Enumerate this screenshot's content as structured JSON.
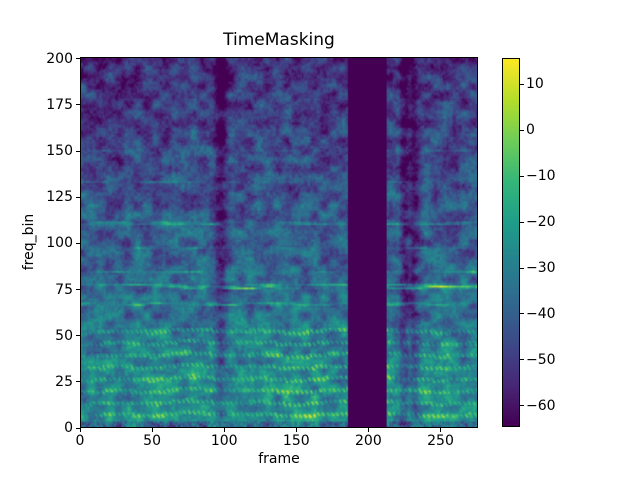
{
  "title": "TimeMasking",
  "axes": {
    "xlabel": "frame",
    "ylabel": "freq_bin",
    "x_ticks": [
      0,
      50,
      100,
      150,
      200,
      250
    ],
    "y_ticks": [
      0,
      25,
      50,
      75,
      100,
      125,
      150,
      175,
      200
    ]
  },
  "colorbar": {
    "tick_values": [
      10,
      0,
      -10,
      -20,
      -30,
      -40,
      -50,
      -60
    ],
    "tick_labels": [
      "10",
      "0",
      "−10",
      "−20",
      "−30",
      "−40",
      "−50",
      "−60"
    ]
  },
  "chart_data": {
    "type": "heatmap",
    "title": "TimeMasking",
    "xlabel": "frame",
    "ylabel": "freq_bin",
    "x_range": [
      0,
      276
    ],
    "y_range": [
      0,
      201
    ],
    "value_range": [
      -64.6,
      15.7
    ],
    "colormap": "viridis",
    "colormap_stops": [
      "#440154",
      "#482878",
      "#3e4989",
      "#31688e",
      "#26828e",
      "#1f9e89",
      "#35b779",
      "#6ece58",
      "#b5de2b",
      "#fde725"
    ],
    "masked_time_region": {
      "start_frame": 186,
      "end_frame": 213,
      "color": "#440154"
    },
    "colorbar_ticks": [
      10,
      0,
      -10,
      -20,
      -30,
      -40,
      -50,
      -60
    ],
    "grid": false,
    "description": "Log-power speech spectrogram (~276 frames x 201 freq bins) after TimeMasking augmentation: a uniform minimum-value dark vertical band covers frames ~186-213. Bright dashed harmonic streaks below freq bin ~55, scattered green horizontal streaks near bins 66-77 and ~110, dark blue/purple blocky noise texture above bin ~100, darker pause columns near frames ~97 and ~231."
  }
}
